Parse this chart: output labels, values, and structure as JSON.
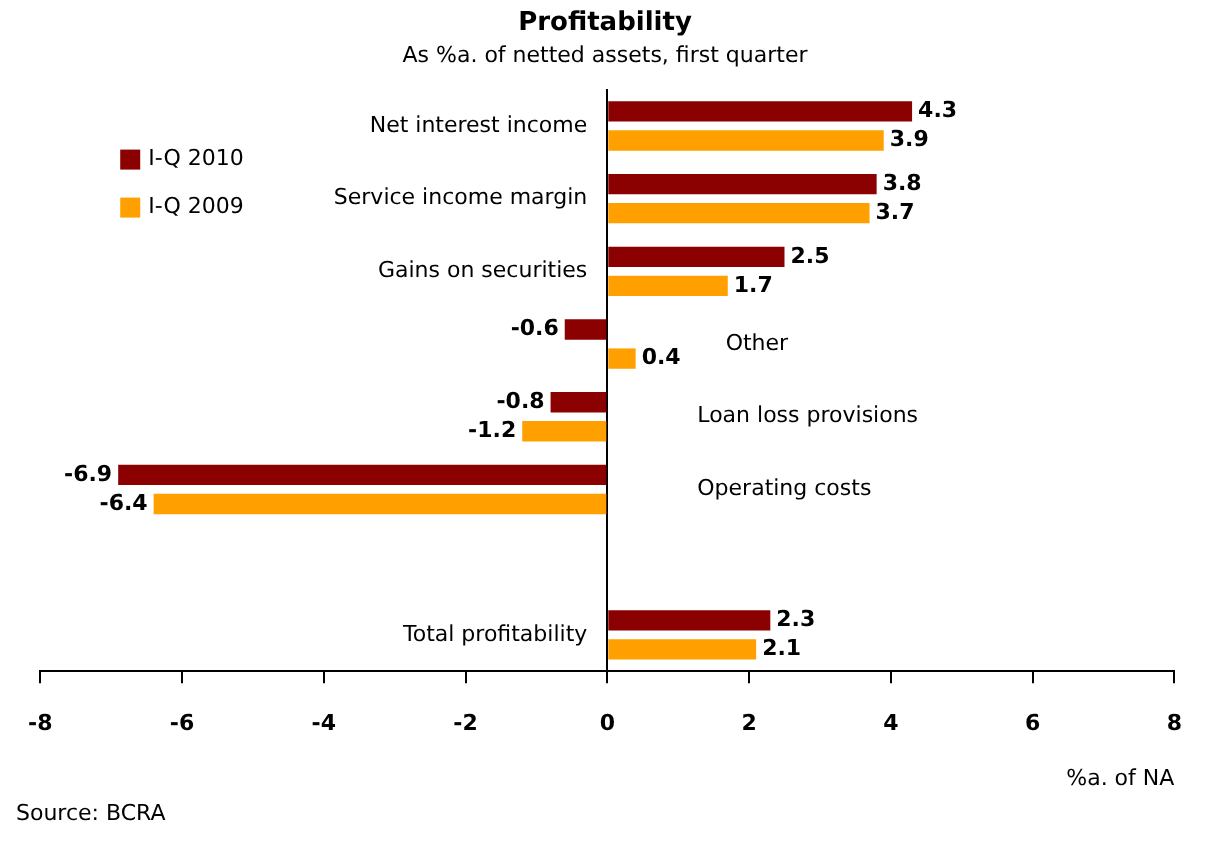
{
  "chart_data": {
    "type": "bar",
    "orientation": "horizontal",
    "title": "Profitability",
    "subtitle": "As %a. of netted assets, first quarter",
    "xlabel": "%a. of NA",
    "categories": [
      "Net interest income",
      "Service income margin",
      "Gains on securities",
      "Other",
      "Loan loss provisions",
      "Operating costs",
      null,
      "Total profitability"
    ],
    "series": [
      {
        "name": "I-Q 2010",
        "color": "#8b0000",
        "values": [
          4.3,
          3.8,
          2.5,
          -0.6,
          -0.8,
          -6.9,
          null,
          2.3
        ]
      },
      {
        "name": "I-Q 2009",
        "color": "#ffa000",
        "values": [
          3.9,
          3.7,
          1.7,
          0.4,
          -1.2,
          -6.4,
          null,
          2.1
        ]
      }
    ],
    "xlim": [
      -8,
      8
    ],
    "xticks": [
      -8,
      -6,
      -4,
      -2,
      0,
      2,
      4,
      6,
      8
    ],
    "data_labels": true,
    "legend": "top left",
    "grid": false,
    "annotations": [
      "Source: BCRA"
    ]
  }
}
